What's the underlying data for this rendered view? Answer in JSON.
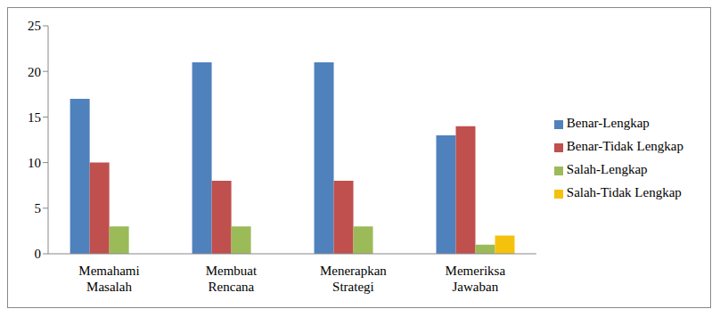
{
  "chart_data": {
    "type": "bar",
    "categories": [
      "Memahami Masalah",
      "Membuat Rencana",
      "Menerapkan Strategi",
      "Memeriksa Jawaban"
    ],
    "series": [
      {
        "name": "Benar-Lengkap",
        "color": "#4f81bd",
        "values": [
          17,
          21,
          21,
          13
        ]
      },
      {
        "name": "Benar-Tidak Lengkap",
        "color": "#c0504d",
        "values": [
          10,
          8,
          8,
          14
        ]
      },
      {
        "name": "Salah-Lengkap",
        "color": "#9bbb59",
        "values": [
          3,
          3,
          3,
          1
        ]
      },
      {
        "name": "Salah-Tidak Lengkap",
        "color": "#f4c20d",
        "values": [
          0,
          0,
          0,
          2
        ]
      }
    ],
    "ylim": [
      0,
      25
    ],
    "yticks": [
      0,
      5,
      10,
      15,
      20,
      25
    ],
    "grid": false,
    "legend": "right"
  }
}
